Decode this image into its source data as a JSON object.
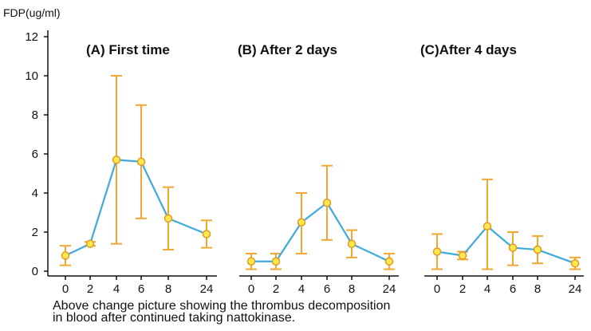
{
  "chart_data": {
    "type": "line",
    "ylabel": "FDP(ug/ml)",
    "ylim": [
      0,
      12
    ],
    "yticks": [
      0,
      2,
      4,
      6,
      8,
      10,
      12
    ],
    "grid": false,
    "colors": {
      "line": "#3fa9dc",
      "error_bar": "#f0a830",
      "marker_fill": "#ffe94d",
      "marker_edge": "#e59a1c"
    },
    "panels": [
      {
        "title": "(A) First time",
        "x": [
          "0",
          "2",
          "4",
          "6",
          "8",
          "24"
        ],
        "values": [
          0.8,
          1.4,
          5.7,
          5.6,
          2.7,
          1.9
        ],
        "error_low": [
          0.3,
          1.3,
          1.4,
          2.7,
          1.1,
          1.2
        ],
        "error_high": [
          1.3,
          1.5,
          10.0,
          8.5,
          4.3,
          2.6
        ]
      },
      {
        "title": "(B) After 2 days",
        "x": [
          "0",
          "2",
          "4",
          "6",
          "8",
          "24"
        ],
        "values": [
          0.5,
          0.5,
          2.5,
          3.5,
          1.4,
          0.5
        ],
        "error_low": [
          0.1,
          0.1,
          0.9,
          1.6,
          0.7,
          0.1
        ],
        "error_high": [
          0.9,
          0.9,
          4.0,
          5.4,
          2.1,
          0.9
        ]
      },
      {
        "title": "(C)After 4 days",
        "x": [
          "0",
          "2",
          "4",
          "6",
          "8",
          "24"
        ],
        "values": [
          1.0,
          0.8,
          2.3,
          1.2,
          1.1,
          0.4
        ],
        "error_low": [
          0.1,
          0.6,
          0.1,
          0.3,
          0.4,
          0.1
        ],
        "error_high": [
          1.9,
          1.0,
          4.7,
          2.0,
          1.8,
          0.7
        ]
      }
    ]
  },
  "caption": {
    "line1": "Above change picture showing the thrombus decomposition",
    "line2": "in blood after continued taking nattokinase."
  }
}
